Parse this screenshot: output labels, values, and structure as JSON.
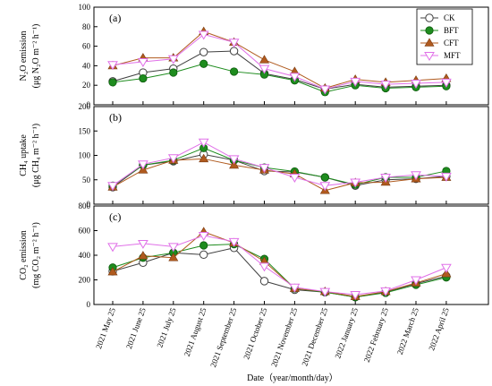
{
  "chart_data": {
    "type": "line",
    "xlabel": "Date（year/month/day）",
    "categories": [
      "2021 May 25",
      "2021 June 25",
      "2021 July 25",
      "2021 August 25",
      "2021 September 25",
      "2021 October 25",
      "2021 November 25",
      "2021 December 25",
      "2022 January 25",
      "2022 February 25",
      "2022 March 25",
      "2022 April 25"
    ],
    "legend": {
      "placement": "top-right",
      "entries": [
        "CK",
        "BFT",
        "CFT",
        "MFT"
      ]
    },
    "series_styles": [
      {
        "name": "CK",
        "color": "#404040",
        "marker": "circle-open"
      },
      {
        "name": "BFT",
        "color": "#1e8c1e",
        "marker": "circle-filled"
      },
      {
        "name": "CFT",
        "color": "#b05a1e",
        "marker": "triangle-up-filled"
      },
      {
        "name": "MFT",
        "color": "#e070e8",
        "marker": "triangle-down-open"
      }
    ],
    "panels": [
      {
        "label": "(a)",
        "ylabel_line1": "N₂O emission",
        "ylabel_line2": "(μg N₂O m⁻² h⁻¹)",
        "ylim": [
          0,
          100
        ],
        "yticks": [
          0,
          20,
          40,
          60,
          80,
          100
        ],
        "series": [
          {
            "name": "CK",
            "values": [
              24,
              33,
              37,
              54,
              55,
              32,
              26,
              16,
              21,
              18,
              19,
              20
            ]
          },
          {
            "name": "BFT",
            "values": [
              23,
              27,
              33,
              42,
              34,
              31,
              25,
              13,
              20,
              17,
              18,
              19
            ]
          },
          {
            "name": "CFT",
            "values": [
              40,
              48,
              48,
              75,
              64,
              46,
              34,
              17,
              26,
              23,
              25,
              27
            ]
          },
          {
            "name": "MFT",
            "values": [
              41,
              44,
              47,
              72,
              64,
              37,
              29,
              16,
              24,
              21,
              22,
              23
            ]
          }
        ]
      },
      {
        "label": "(b)",
        "ylabel_line1": "CH₄ uptake",
        "ylabel_line2": "(μg CH₄ m⁻² h⁻¹)",
        "ylim": [
          0,
          200
        ],
        "yticks": [
          0,
          50,
          100,
          150,
          200
        ],
        "series": [
          {
            "name": "CK",
            "values": [
              35,
              80,
              88,
              102,
              90,
              68,
              66,
              55,
              38,
              50,
              52,
              57
            ]
          },
          {
            "name": "BFT",
            "values": [
              38,
              80,
              90,
              115,
              90,
              75,
              67,
              55,
              40,
              55,
              55,
              68
            ]
          },
          {
            "name": "CFT",
            "values": [
              35,
              70,
              90,
              93,
              80,
              70,
              62,
              28,
              44,
              45,
              52,
              55
            ]
          },
          {
            "name": "MFT",
            "values": [
              38,
              82,
              95,
              127,
              93,
              75,
              55,
              38,
              45,
              55,
              60,
              57
            ]
          }
        ]
      },
      {
        "label": "(c)",
        "ylabel_line1": "CO₂ emission",
        "ylabel_line2": "(mg CO₂ m⁻² h⁻¹)",
        "ylim": [
          0,
          800
        ],
        "yticks": [
          0,
          200,
          400,
          600,
          800
        ],
        "series": [
          {
            "name": "CK",
            "values": [
              270,
              340,
              420,
              405,
              460,
              190,
              120,
              100,
              60,
              100,
              170,
              230
            ]
          },
          {
            "name": "BFT",
            "values": [
              300,
              380,
              420,
              480,
              490,
              370,
              130,
              100,
              60,
              95,
              160,
              220
            ]
          },
          {
            "name": "CFT",
            "values": [
              265,
              395,
              380,
              590,
              500,
              350,
              130,
              105,
              65,
              105,
              175,
              250
            ]
          },
          {
            "name": "MFT",
            "values": [
              470,
              495,
              470,
              560,
              510,
              310,
              140,
              105,
              80,
              110,
              200,
              300
            ]
          }
        ]
      }
    ]
  }
}
